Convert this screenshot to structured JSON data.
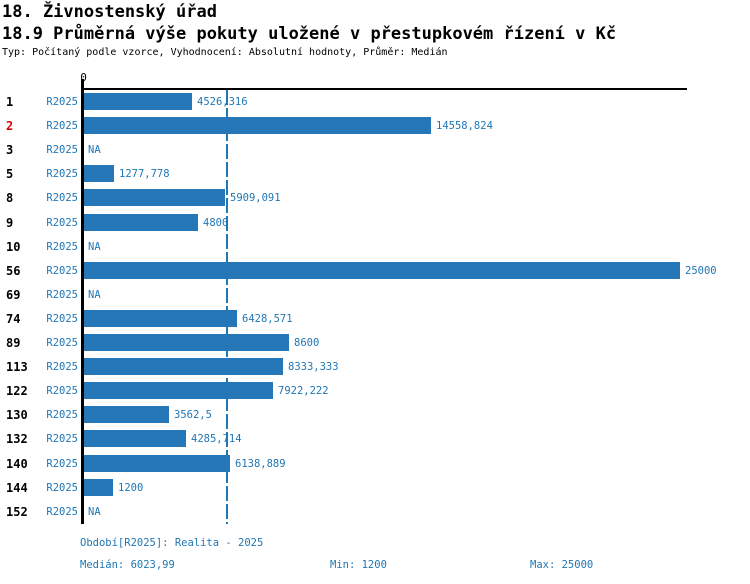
{
  "header": {
    "title": "18. Živnostenský úřad",
    "subtitle": "18.9 Průměrná výše pokuty uložené v přestupkovém řízení v Kč",
    "meta": "Typ: Počítaný podle vzorce, Vyhodnocení: Absolutní hodnoty, Průměr: Medián"
  },
  "colors": {
    "bar": "#2577b8",
    "accent": "#1f77b4",
    "highlight_red": "#e10000",
    "axis": "#000000"
  },
  "chart_data": {
    "type": "bar",
    "orientation": "horizontal",
    "title": "18.9 Průměrná výše pokuty uložené v přestupkovém řízení v Kč",
    "xlabel": "",
    "ylabel": "",
    "xlim": [
      0,
      25000
    ],
    "zero_tick_label": "0",
    "grid": false,
    "legend_position": "none",
    "series_name": "R2025",
    "median_line_value": 6023.99,
    "categories": [
      "1",
      "2",
      "3",
      "5",
      "8",
      "9",
      "10",
      "56",
      "69",
      "74",
      "89",
      "113",
      "122",
      "130",
      "132",
      "140",
      "144",
      "152"
    ],
    "rows": [
      {
        "num": "1",
        "period": "R2025",
        "label": "4526,316",
        "value": 4526.316,
        "highlight": false
      },
      {
        "num": "2",
        "period": "R2025",
        "label": "14558,824",
        "value": 14558.824,
        "highlight": true
      },
      {
        "num": "3",
        "period": "R2025",
        "label": "NA",
        "value": null,
        "highlight": false
      },
      {
        "num": "5",
        "period": "R2025",
        "label": "1277,778",
        "value": 1277.778,
        "highlight": false
      },
      {
        "num": "8",
        "period": "R2025",
        "label": "5909,091",
        "value": 5909.091,
        "highlight": false
      },
      {
        "num": "9",
        "period": "R2025",
        "label": "4800",
        "value": 4800,
        "highlight": false
      },
      {
        "num": "10",
        "period": "R2025",
        "label": "NA",
        "value": null,
        "highlight": false
      },
      {
        "num": "56",
        "period": "R2025",
        "label": "25000",
        "value": 25000,
        "highlight": false
      },
      {
        "num": "69",
        "period": "R2025",
        "label": "NA",
        "value": null,
        "highlight": false
      },
      {
        "num": "74",
        "period": "R2025",
        "label": "6428,571",
        "value": 6428.571,
        "highlight": false
      },
      {
        "num": "89",
        "period": "R2025",
        "label": "8600",
        "value": 8600,
        "highlight": false
      },
      {
        "num": "113",
        "period": "R2025",
        "label": "8333,333",
        "value": 8333.333,
        "highlight": false
      },
      {
        "num": "122",
        "period": "R2025",
        "label": "7922,222",
        "value": 7922.222,
        "highlight": false
      },
      {
        "num": "130",
        "period": "R2025",
        "label": "3562,5",
        "value": 3562.5,
        "highlight": false
      },
      {
        "num": "132",
        "period": "R2025",
        "label": "4285,714",
        "value": 4285.714,
        "highlight": false
      },
      {
        "num": "140",
        "period": "R2025",
        "label": "6138,889",
        "value": 6138.889,
        "highlight": false
      },
      {
        "num": "144",
        "period": "R2025",
        "label": "1200",
        "value": 1200,
        "highlight": false
      },
      {
        "num": "152",
        "period": "R2025",
        "label": "NA",
        "value": null,
        "highlight": false
      }
    ]
  },
  "footer": {
    "period_line": "Období[R2025]: Realita - 2025",
    "median_label": "Medián: 6023,99",
    "min_label": "Min: 1200",
    "max_label": "Max: 25000"
  }
}
